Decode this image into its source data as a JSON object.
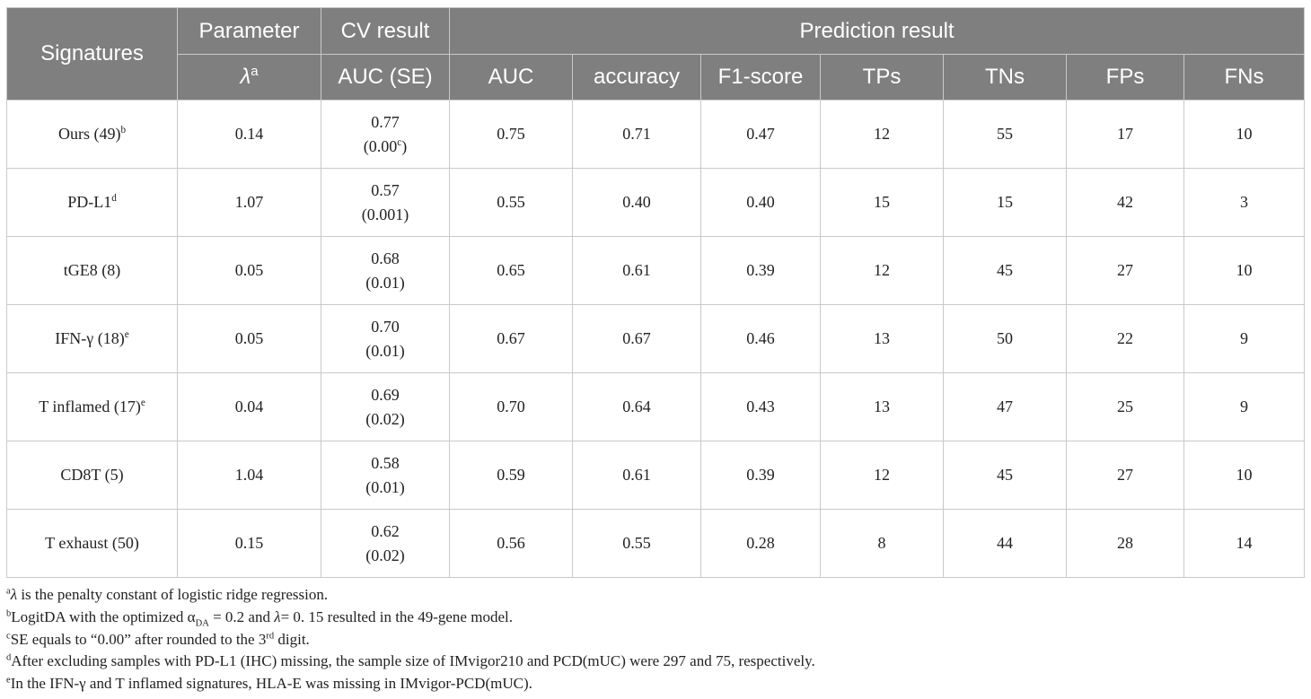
{
  "table": {
    "header": {
      "rows": [
        [
          {
            "lines": [
              [
                "Signatures"
              ]
            ],
            "rowspan": 2
          },
          {
            "lines": [
              [
                "Parameter"
              ]
            ]
          },
          {
            "lines": [
              [
                "CV result"
              ]
            ]
          },
          {
            "lines": [
              [
                "Prediction result"
              ]
            ],
            "colspan": 7
          }
        ],
        [
          {
            "lines": [
              [
                {
                  "text": "λ",
                  "style": "italic"
                },
                {
                  "text": "a",
                  "style": "sup"
                }
              ]
            ]
          },
          {
            "lines": [
              [
                "AUC (SE)"
              ]
            ]
          },
          {
            "lines": [
              [
                "AUC"
              ]
            ]
          },
          {
            "lines": [
              [
                "accuracy"
              ]
            ]
          },
          {
            "lines": [
              [
                "F1-score"
              ]
            ]
          },
          {
            "lines": [
              [
                "TPs"
              ]
            ]
          },
          {
            "lines": [
              [
                "TNs"
              ]
            ]
          },
          {
            "lines": [
              [
                "FPs"
              ]
            ]
          },
          {
            "lines": [
              [
                "FNs"
              ]
            ]
          }
        ]
      ]
    },
    "rows": [
      [
        [
          [
            "Ours (49)",
            {
              "text": "b",
              "style": "sup"
            }
          ]
        ],
        [
          [
            "0.14"
          ]
        ],
        [
          [
            "0.77"
          ],
          [
            "(0.00",
            {
              "text": "c",
              "style": "sup"
            },
            ")"
          ]
        ],
        [
          [
            "0.75"
          ]
        ],
        [
          [
            "0.71"
          ]
        ],
        [
          [
            "0.47"
          ]
        ],
        [
          [
            "12"
          ]
        ],
        [
          [
            "55"
          ]
        ],
        [
          [
            "17"
          ]
        ],
        [
          [
            "10"
          ]
        ]
      ],
      [
        [
          [
            "PD-L1",
            {
              "text": "d",
              "style": "sup"
            }
          ]
        ],
        [
          [
            "1.07"
          ]
        ],
        [
          [
            "0.57"
          ],
          [
            "(0.001)"
          ]
        ],
        [
          [
            "0.55"
          ]
        ],
        [
          [
            "0.40"
          ]
        ],
        [
          [
            "0.40"
          ]
        ],
        [
          [
            "15"
          ]
        ],
        [
          [
            "15"
          ]
        ],
        [
          [
            "42"
          ]
        ],
        [
          [
            "3"
          ]
        ]
      ],
      [
        [
          [
            "tGE8 (8)"
          ]
        ],
        [
          [
            "0.05"
          ]
        ],
        [
          [
            "0.68"
          ],
          [
            "(0.01)"
          ]
        ],
        [
          [
            "0.65"
          ]
        ],
        [
          [
            "0.61"
          ]
        ],
        [
          [
            "0.39"
          ]
        ],
        [
          [
            "12"
          ]
        ],
        [
          [
            "45"
          ]
        ],
        [
          [
            "27"
          ]
        ],
        [
          [
            "10"
          ]
        ]
      ],
      [
        [
          [
            "IFN-γ (18)",
            {
              "text": "e",
              "style": "sup"
            }
          ]
        ],
        [
          [
            "0.05"
          ]
        ],
        [
          [
            "0.70"
          ],
          [
            "(0.01)"
          ]
        ],
        [
          [
            "0.67"
          ]
        ],
        [
          [
            "0.67"
          ]
        ],
        [
          [
            "0.46"
          ]
        ],
        [
          [
            "13"
          ]
        ],
        [
          [
            "50"
          ]
        ],
        [
          [
            "22"
          ]
        ],
        [
          [
            "9"
          ]
        ]
      ],
      [
        [
          [
            "T inflamed (17)",
            {
              "text": "e",
              "style": "sup"
            }
          ]
        ],
        [
          [
            "0.04"
          ]
        ],
        [
          [
            "0.69"
          ],
          [
            "(0.02)"
          ]
        ],
        [
          [
            "0.70"
          ]
        ],
        [
          [
            "0.64"
          ]
        ],
        [
          [
            "0.43"
          ]
        ],
        [
          [
            "13"
          ]
        ],
        [
          [
            "47"
          ]
        ],
        [
          [
            "25"
          ]
        ],
        [
          [
            "9"
          ]
        ]
      ],
      [
        [
          [
            "CD8T (5)"
          ]
        ],
        [
          [
            "1.04"
          ]
        ],
        [
          [
            "0.58"
          ],
          [
            "(0.01)"
          ]
        ],
        [
          [
            "0.59"
          ]
        ],
        [
          [
            "0.61"
          ]
        ],
        [
          [
            "0.39"
          ]
        ],
        [
          [
            "12"
          ]
        ],
        [
          [
            "45"
          ]
        ],
        [
          [
            "27"
          ]
        ],
        [
          [
            "10"
          ]
        ]
      ],
      [
        [
          [
            "T exhaust (50)"
          ]
        ],
        [
          [
            "0.15"
          ]
        ],
        [
          [
            "0.62"
          ],
          [
            "(0.02)"
          ]
        ],
        [
          [
            "0.56"
          ]
        ],
        [
          [
            "0.55"
          ]
        ],
        [
          [
            "0.28"
          ]
        ],
        [
          [
            "8"
          ]
        ],
        [
          [
            "44"
          ]
        ],
        [
          [
            "28"
          ]
        ],
        [
          [
            "14"
          ]
        ]
      ]
    ]
  },
  "footnotes": [
    [
      {
        "text": "a",
        "style": "sup"
      },
      {
        "text": "λ",
        "style": "italic"
      },
      " is the penalty constant of logistic ridge regression."
    ],
    [
      {
        "text": "b",
        "style": "sup"
      },
      "LogitDA with the optimized α",
      {
        "text": "DA",
        "style": "sub"
      },
      " = 0.2 and ",
      {
        "text": "λ",
        "style": "italic"
      },
      "= 0. 15 resulted in the 49-gene model."
    ],
    [
      {
        "text": "c",
        "style": "sup"
      },
      "SE equals to “0.00” after rounded to the 3",
      {
        "text": "rd",
        "style": "sup"
      },
      " digit."
    ],
    [
      {
        "text": "d",
        "style": "sup"
      },
      "After excluding samples with PD-L1 (IHC) missing, the sample size of IMvigor210 and PCD(mUC) were 297 and 75, respectively."
    ],
    [
      {
        "text": "e",
        "style": "sup"
      },
      "In the IFN-γ and T inflamed signatures, HLA-E was missing in IMvigor-PCD(mUC)."
    ]
  ]
}
